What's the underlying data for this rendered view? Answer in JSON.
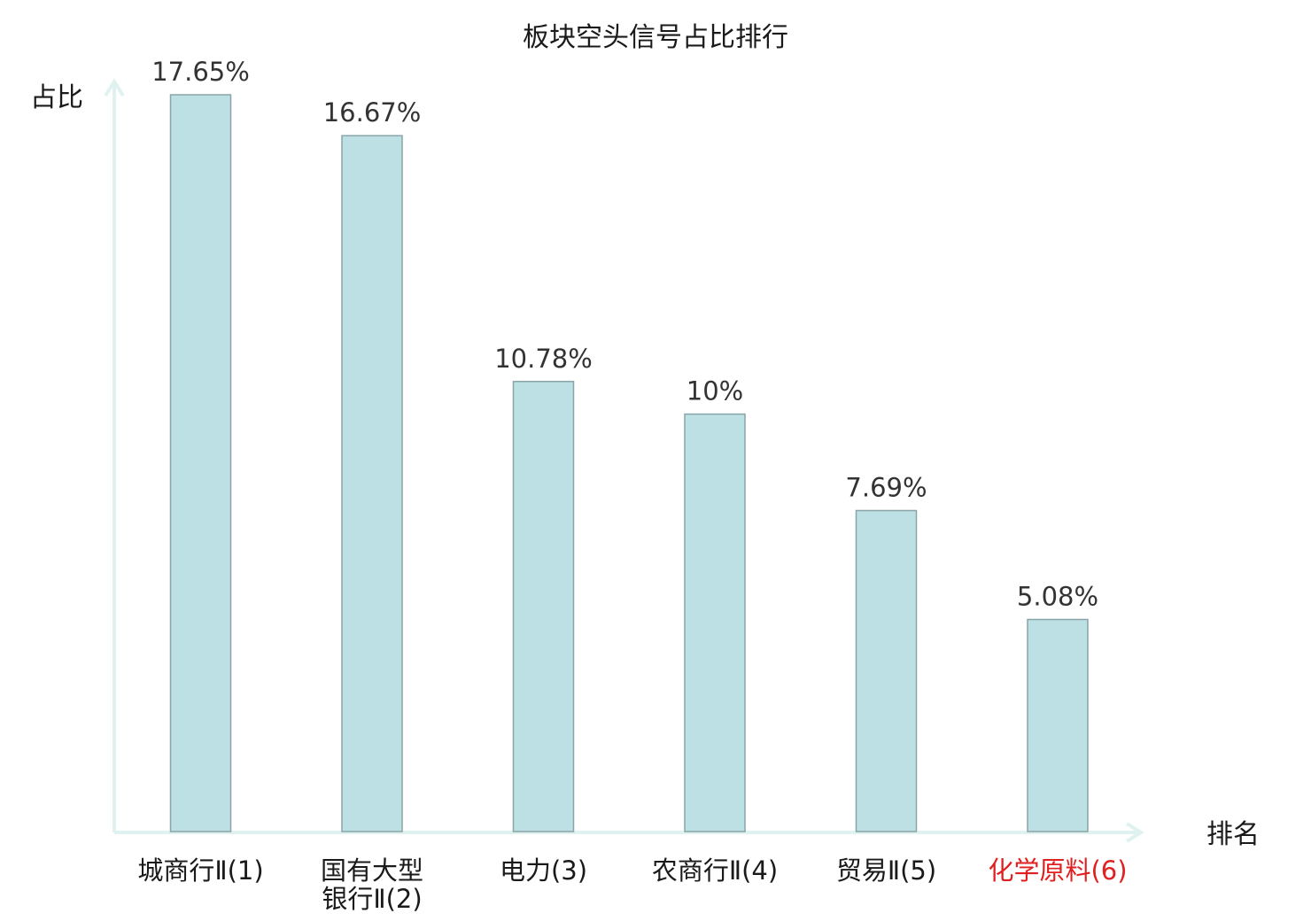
{
  "chart_data": {
    "type": "bar",
    "title": "板块空头信号占比排行",
    "ylabel": "占比",
    "xlabel": "排名",
    "categories": [
      [
        "城商行Ⅱ(1)"
      ],
      [
        "国有大型",
        "银行Ⅱ(2)"
      ],
      [
        "电力(3)"
      ],
      [
        "农商行Ⅱ(4)"
      ],
      [
        "贸易Ⅱ(5)"
      ],
      [
        "化学原料(6)"
      ]
    ],
    "values": [
      17.65,
      16.67,
      10.78,
      10,
      7.69,
      5.08
    ],
    "value_labels": [
      "17.65%",
      "16.67%",
      "10.78%",
      "10%",
      "7.69%",
      "5.08%"
    ],
    "ylim": [
      0,
      17.65
    ],
    "grid": false,
    "colors": {
      "bar_fill": "#bce0e3",
      "bar_stroke": "#8aa4a8",
      "axis": "#e0f2ef",
      "tick_normal": "#1a1a1a",
      "tick_highlight": "#e02020"
    },
    "highlight_index": 5
  }
}
